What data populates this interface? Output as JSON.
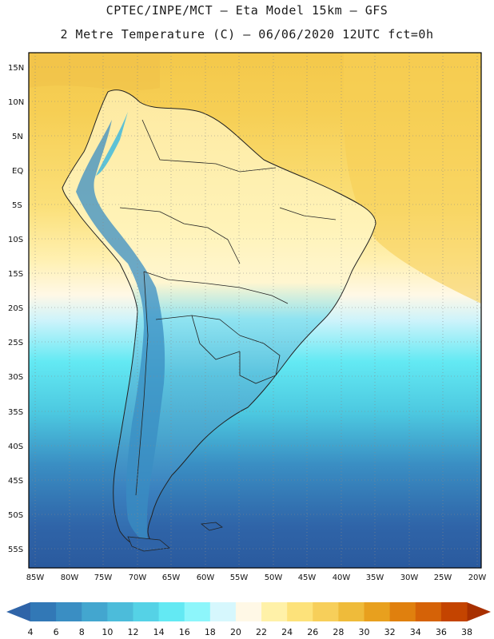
{
  "title_line1": "CPTEC/INPE/MCT –  Eta Model 15km – GFS",
  "title_line2": "2 Metre Temperature (C) – 06/06/2020 12UTC fct=0h",
  "lat_labels": [
    "15N",
    "10N",
    "5N",
    "EQ",
    "5S",
    "10S",
    "15S",
    "20S",
    "25S",
    "30S",
    "35S",
    "40S",
    "45S",
    "50S",
    "55S"
  ],
  "lon_labels": [
    "85W",
    "80W",
    "75W",
    "70W",
    "65W",
    "60W",
    "55W",
    "50W",
    "45W",
    "40W",
    "35W",
    "30W",
    "25W",
    "20W"
  ],
  "colorbar": {
    "labels": [
      "4",
      "6",
      "8",
      "10",
      "12",
      "14",
      "16",
      "18",
      "20",
      "22",
      "24",
      "26",
      "28",
      "30",
      "32",
      "34",
      "36",
      "38"
    ],
    "colors": [
      "#2f64a8",
      "#3278b6",
      "#3a8ec3",
      "#43a6cf",
      "#4cbcda",
      "#55d2e6",
      "#63e9f3",
      "#8df6fb",
      "#d6f7fd",
      "#fff8e6",
      "#fff1a8",
      "#fde27a",
      "#f7cf5a",
      "#efbb3a",
      "#e8a01e",
      "#e0800e",
      "#d56207",
      "#c44400",
      "#a83000"
    ]
  }
}
